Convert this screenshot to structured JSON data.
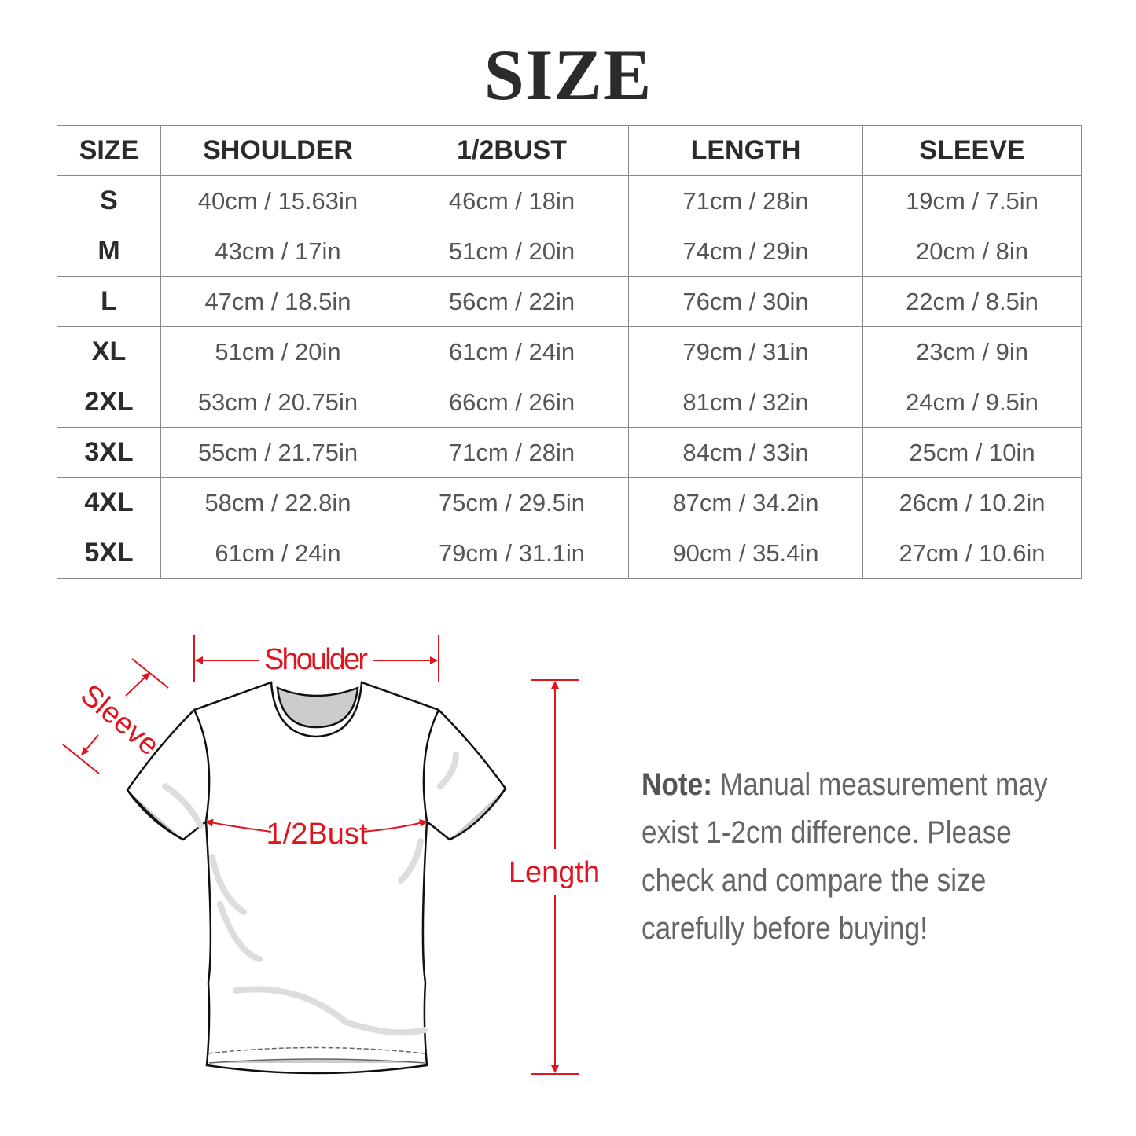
{
  "title": "SIZE",
  "table": {
    "headers": [
      "SIZE",
      "SHOULDER",
      "1/2BUST",
      "LENGTH",
      "SLEEVE"
    ],
    "rows": [
      [
        "S",
        "40cm / 15.63in",
        "46cm / 18in",
        "71cm / 28in",
        "19cm / 7.5in"
      ],
      [
        "M",
        "43cm / 17in",
        "51cm / 20in",
        "74cm / 29in",
        "20cm / 8in"
      ],
      [
        "L",
        "47cm / 18.5in",
        "56cm / 22in",
        "76cm / 30in",
        "22cm / 8.5in"
      ],
      [
        "XL",
        "51cm / 20in",
        "61cm / 24in",
        "79cm / 31in",
        "23cm / 9in"
      ],
      [
        "2XL",
        "53cm / 20.75in",
        "66cm / 26in",
        "81cm / 32in",
        "24cm / 9.5in"
      ],
      [
        "3XL",
        "55cm / 21.75in",
        "71cm / 28in",
        "84cm / 33in",
        "25cm / 10in"
      ],
      [
        "4XL",
        "58cm / 22.8in",
        "75cm / 29.5in",
        "87cm / 34.2in",
        "26cm / 10.2in"
      ],
      [
        "5XL",
        "61cm / 24in",
        "79cm / 31.1in",
        "90cm / 35.4in",
        "27cm / 10.6in"
      ]
    ]
  },
  "diagram": {
    "shoulder": "Shoulder",
    "sleeve": "Sleeve",
    "bust": "1/2Bust",
    "length": "Length",
    "accent_color": "#e0141e"
  },
  "note": {
    "label": "Note:",
    "text": "Manual measurement may exist 1-2cm difference. Please check and compare the size carefully before buying!"
  }
}
